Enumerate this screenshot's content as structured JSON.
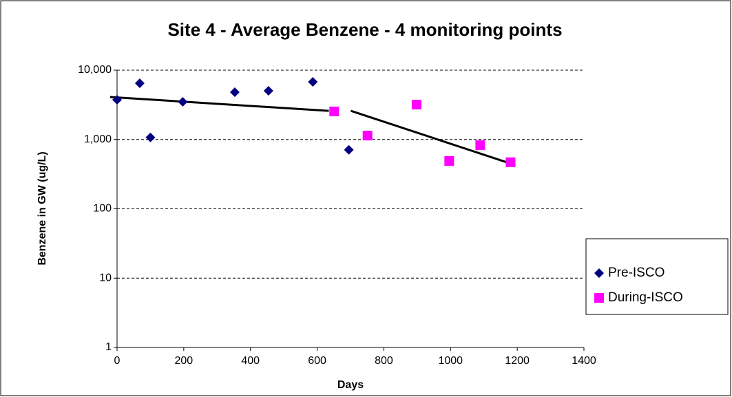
{
  "chart_data": {
    "type": "scatter",
    "title": "Site 4 - Average Benzene - 4 monitoring points",
    "x_label": "Days",
    "y_label": "Benzene in GW (ug/L)",
    "xlim": [
      0,
      1400
    ],
    "xticks": [
      0,
      200,
      400,
      600,
      800,
      1000,
      1200,
      1400
    ],
    "ylim": [
      1,
      10000
    ],
    "log_y": true,
    "yticks": [
      1,
      10,
      100,
      {
        "value": 1000,
        "label": "1,000"
      },
      {
        "value": 10000,
        "label": "10,000"
      }
    ],
    "grid": true,
    "legend": "right",
    "series": [
      {
        "name": "Pre-ISCO",
        "color": "#000080",
        "marker": "diamond",
        "x": [
          0,
          68,
          100,
          197,
          353,
          454,
          587,
          695
        ],
        "values": [
          3740,
          6480,
          1070,
          3490,
          4810,
          5040,
          6780,
          710
        ]
      },
      {
        "name": "During-ISCO",
        "color": "#ff00ff",
        "marker": "square",
        "x": [
          651,
          751,
          898,
          996,
          1089,
          1180
        ],
        "values": [
          2540,
          1140,
          3190,
          490,
          830,
          470
        ]
      }
    ],
    "trendlines": [
      {
        "color": "#000000",
        "x": [
          -21,
          635
        ],
        "values": [
          4100,
          2590
        ]
      },
      {
        "color": "#000000",
        "x": [
          701,
          1176
        ],
        "values": [
          2590,
          457
        ]
      }
    ]
  }
}
